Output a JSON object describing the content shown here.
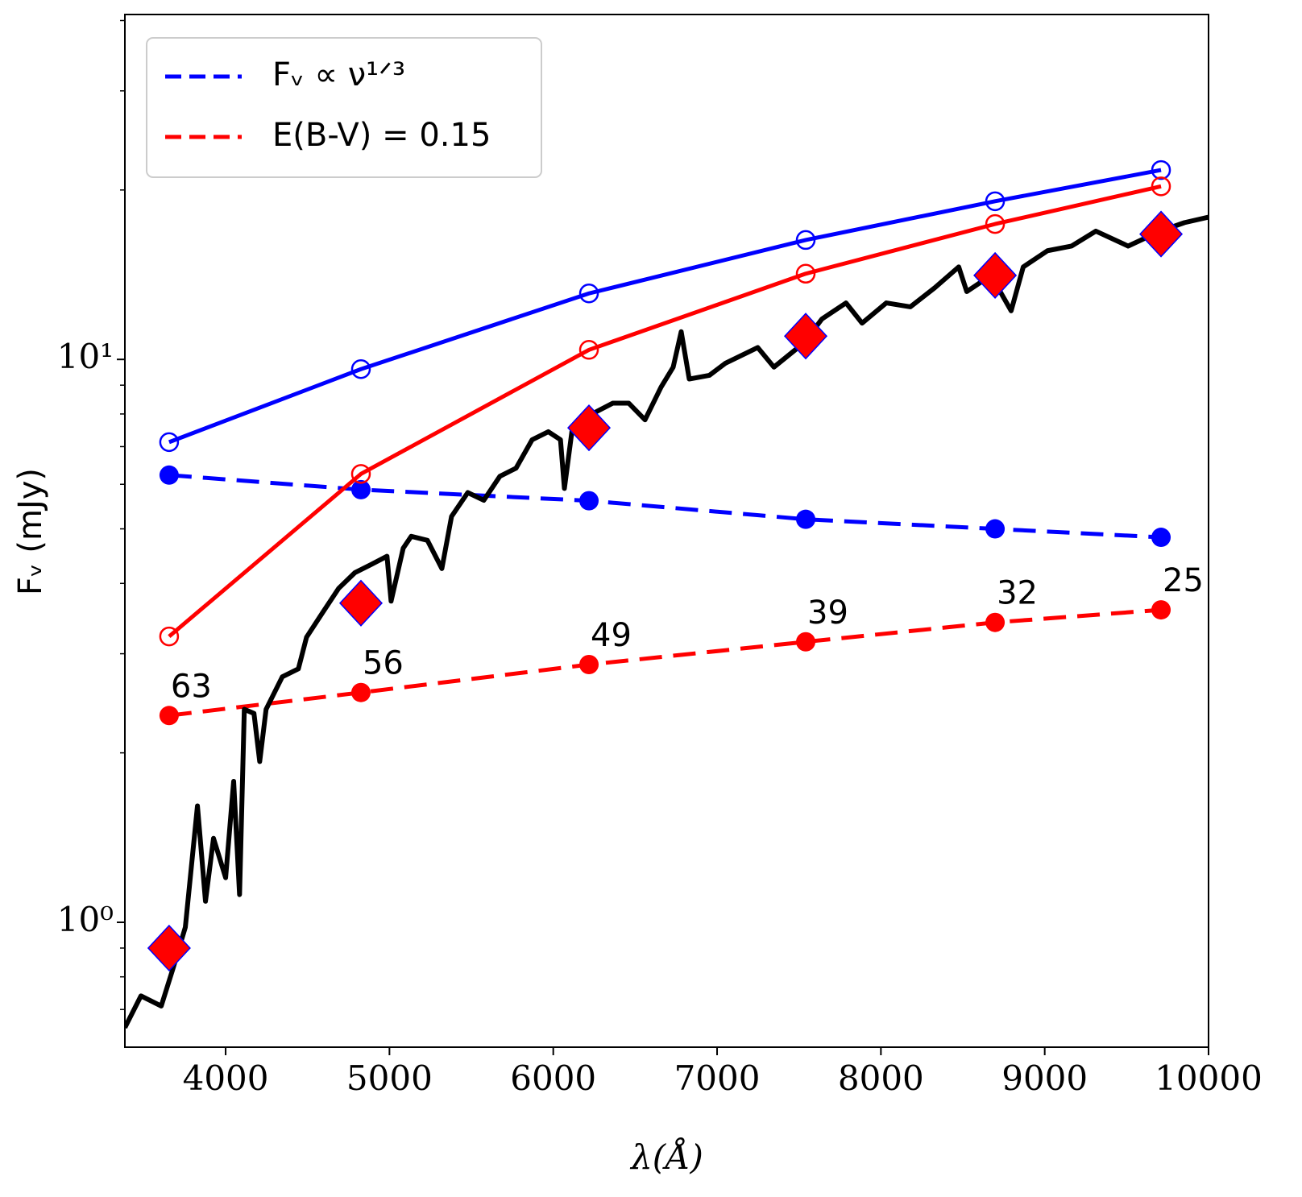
{
  "chart_data": {
    "type": "line",
    "x_label": "λ(Å)",
    "y_label": "Fᵥ (mJy)",
    "log_y": true,
    "legend": "upper left",
    "xlim": [
      3385,
      10000
    ],
    "xticks": [
      4000,
      5000,
      6000,
      7000,
      8000,
      9000,
      10000
    ],
    "ylim": [
      0.6,
      41
    ],
    "yticks": [
      {
        "value": 1,
        "label": "10⁰"
      },
      {
        "value": 10,
        "label": "10¹"
      }
    ],
    "yminorticks": [
      0.7,
      0.8,
      0.9,
      2,
      3,
      4,
      5,
      6,
      7,
      8,
      9,
      20,
      30,
      40
    ],
    "x": [
      3655,
      4826,
      6218,
      7541,
      8697,
      9710
    ],
    "series": [
      {
        "name": "Fᵥ ∝ ν¹ᐟ³",
        "color": "#0000ff",
        "style": "dashed",
        "marker": "filled",
        "values": [
          6.23,
          5.87,
          5.61,
          5.2,
          5.0,
          4.83
        ]
      },
      {
        "name": "E(B-V) = 0.15",
        "color": "#ff0000",
        "style": "dashed",
        "marker": "filled",
        "values": [
          2.33,
          2.56,
          2.87,
          3.15,
          3.41,
          3.59
        ],
        "labels": [
          63,
          56,
          49,
          39,
          32,
          25
        ]
      },
      {
        "color": "#0000ff",
        "style": "solid",
        "marker": "open",
        "values": [
          7.13,
          9.61,
          13.1,
          16.3,
          19.1,
          21.7
        ]
      },
      {
        "color": "#ff0000",
        "style": "solid",
        "marker": "open",
        "values": [
          3.22,
          6.26,
          10.4,
          14.2,
          17.4,
          20.3
        ]
      },
      {
        "color": "#000000",
        "style": "solid",
        "marker": "none",
        "x": [
          3385,
          3483,
          3607,
          3680,
          3754,
          3828,
          3877,
          3926,
          4000,
          4049,
          4085,
          4114,
          4173,
          4208,
          4247,
          4346,
          4444,
          4494,
          4592,
          4690,
          4789,
          4887,
          4985,
          5010,
          5084,
          5133,
          5232,
          5320,
          5379,
          5478,
          5576,
          5674,
          5773,
          5871,
          5970,
          6044,
          6068,
          6117,
          6265,
          6363,
          6461,
          6560,
          6658,
          6732,
          6781,
          6830,
          6953,
          7052,
          7248,
          7347,
          7495,
          7541,
          7640,
          7787,
          7885,
          8033,
          8180,
          8328,
          8475,
          8524,
          8672,
          8795,
          8869,
          9017,
          9164,
          9312,
          9509,
          9705,
          9853,
          10000
        ],
        "values": [
          0.65,
          0.74,
          0.71,
          0.83,
          0.98,
          1.61,
          1.09,
          1.41,
          1.2,
          1.78,
          1.12,
          2.39,
          2.35,
          1.93,
          2.39,
          2.73,
          2.82,
          3.21,
          3.55,
          3.92,
          4.18,
          4.32,
          4.47,
          3.72,
          4.62,
          4.85,
          4.77,
          4.25,
          5.26,
          5.8,
          5.62,
          6.2,
          6.41,
          7.2,
          7.44,
          7.2,
          5.9,
          7.57,
          8.08,
          8.36,
          8.36,
          7.81,
          8.93,
          9.69,
          11.2,
          9.23,
          9.37,
          9.85,
          10.5,
          9.69,
          10.5,
          10.8,
          11.8,
          12.6,
          11.6,
          12.6,
          12.4,
          13.4,
          14.6,
          13.2,
          14.1,
          12.2,
          14.6,
          15.6,
          15.9,
          16.9,
          15.9,
          16.9,
          17.5,
          17.9
        ]
      },
      {
        "color": "#ff0000",
        "style": "none",
        "marker": "diamond",
        "values": [
          0.9,
          3.69,
          7.56,
          11.0,
          14.1,
          16.7
        ]
      }
    ]
  }
}
